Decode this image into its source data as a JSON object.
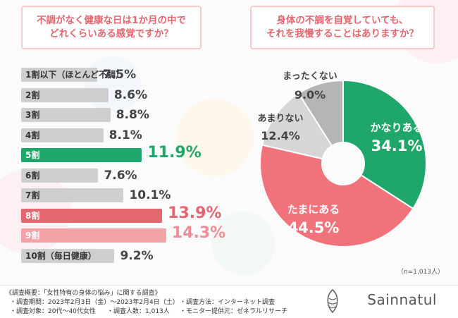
{
  "left_question": {
    "line1": "不調がなく健康な日は1か月の中で",
    "line2": "どれくらいある感覚ですか？"
  },
  "right_question": {
    "line1": "身体の不調を自覚していても、",
    "line2": "それを我慢することはありますか？"
  },
  "chart_data": [
    {
      "type": "bar",
      "orientation": "horizontal",
      "categories": [
        "1割以下（ほとんど不調）",
        "2割",
        "3割",
        "4割",
        "5割",
        "6割",
        "7割",
        "8割",
        "9割",
        "10割（毎日健康）"
      ],
      "values": [
        7.5,
        8.6,
        8.8,
        8.1,
        11.9,
        7.6,
        10.1,
        13.9,
        14.3,
        9.2
      ],
      "value_labels": [
        "7.5%",
        "8.6%",
        "8.8%",
        "8.1%",
        "11.9%",
        "7.6%",
        "10.1%",
        "13.9%",
        "14.3%",
        "9.2%"
      ],
      "highlight_colors": {
        "5割": "#1fa76b",
        "8割": "#e4666f",
        "9割": "#f3a2a8"
      },
      "default_color": "#cfcfcf"
    },
    {
      "type": "pie",
      "style": "donut",
      "slices": [
        {
          "label": "かなりある",
          "value": 34.1,
          "value_label": "34.1%",
          "color": "#1fa76b"
        },
        {
          "label": "たまにある",
          "value": 44.5,
          "value_label": "44.5%",
          "color": "#f0737c"
        },
        {
          "label": "あまりない",
          "value": 12.4,
          "value_label": "12.4%",
          "color": "#d6d6d6"
        },
        {
          "label": "まったくない",
          "value": 9.0,
          "value_label": "9.0%",
          "color": "#b5b5b5"
        }
      ]
    }
  ],
  "sample_note": "（n=1,013人）",
  "survey": {
    "title": "《調査概要：「女性特有の身体の悩み」に関する調査》",
    "period": "・調査期間：2023年2月3日（金）〜2023年2月4日（土）",
    "method": "・調査方法：インターネット調査",
    "target": "・調査対象：20代〜40代女性",
    "count": "・調査人数：1,013人",
    "provider": "・モニター提供元：ゼネラルリサーチ"
  },
  "brand": {
    "name": "Sainnatul"
  }
}
